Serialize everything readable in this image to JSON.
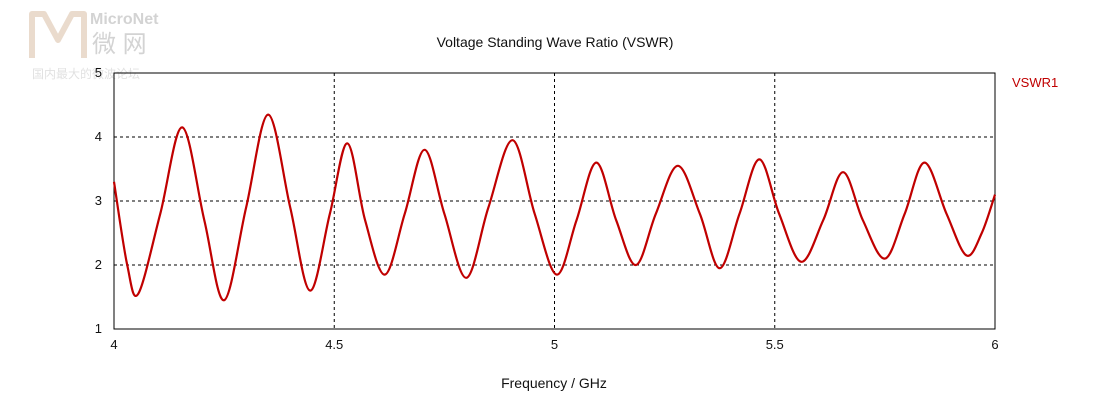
{
  "watermark": {
    "brand": "MicroNet",
    "brand_cjk": "微 网",
    "tagline": "国内最大的微波论坛"
  },
  "chart_data": {
    "type": "line",
    "title": "Voltage Standing Wave Ratio (VSWR)",
    "xlabel": "Frequency / GHz",
    "ylabel": "",
    "xlim": [
      4,
      6
    ],
    "ylim": [
      1,
      5
    ],
    "xticks": [
      "4",
      "4.5",
      "5",
      "5.5",
      "6"
    ],
    "yticks": [
      "1",
      "2",
      "3",
      "4",
      "5"
    ],
    "grid": "dashed",
    "legend": {
      "placement": "right",
      "entries": [
        "VSWR1"
      ]
    },
    "series": [
      {
        "name": "VSWR1",
        "color": "#c00000",
        "x": [
          4.0,
          4.03,
          4.055,
          4.105,
          4.155,
          4.205,
          4.25,
          4.3,
          4.35,
          4.4,
          4.445,
          4.49,
          4.53,
          4.57,
          4.615,
          4.66,
          4.705,
          4.75,
          4.8,
          4.85,
          4.905,
          4.955,
          5.005,
          5.05,
          5.095,
          5.14,
          5.185,
          5.23,
          5.28,
          5.33,
          5.375,
          5.42,
          5.465,
          5.51,
          5.56,
          5.61,
          5.655,
          5.7,
          5.75,
          5.795,
          5.84,
          5.89,
          5.935,
          5.97,
          6.0
        ],
        "y": [
          3.3,
          2.0,
          1.55,
          2.8,
          4.15,
          2.7,
          1.45,
          2.9,
          4.35,
          2.9,
          1.6,
          2.8,
          3.9,
          2.7,
          1.85,
          2.8,
          3.8,
          2.8,
          1.8,
          2.9,
          3.95,
          2.8,
          1.85,
          2.7,
          3.6,
          2.7,
          2.0,
          2.8,
          3.55,
          2.8,
          1.95,
          2.8,
          3.65,
          2.8,
          2.05,
          2.7,
          3.45,
          2.7,
          2.1,
          2.8,
          3.6,
          2.8,
          2.15,
          2.5,
          3.1
        ]
      }
    ]
  }
}
